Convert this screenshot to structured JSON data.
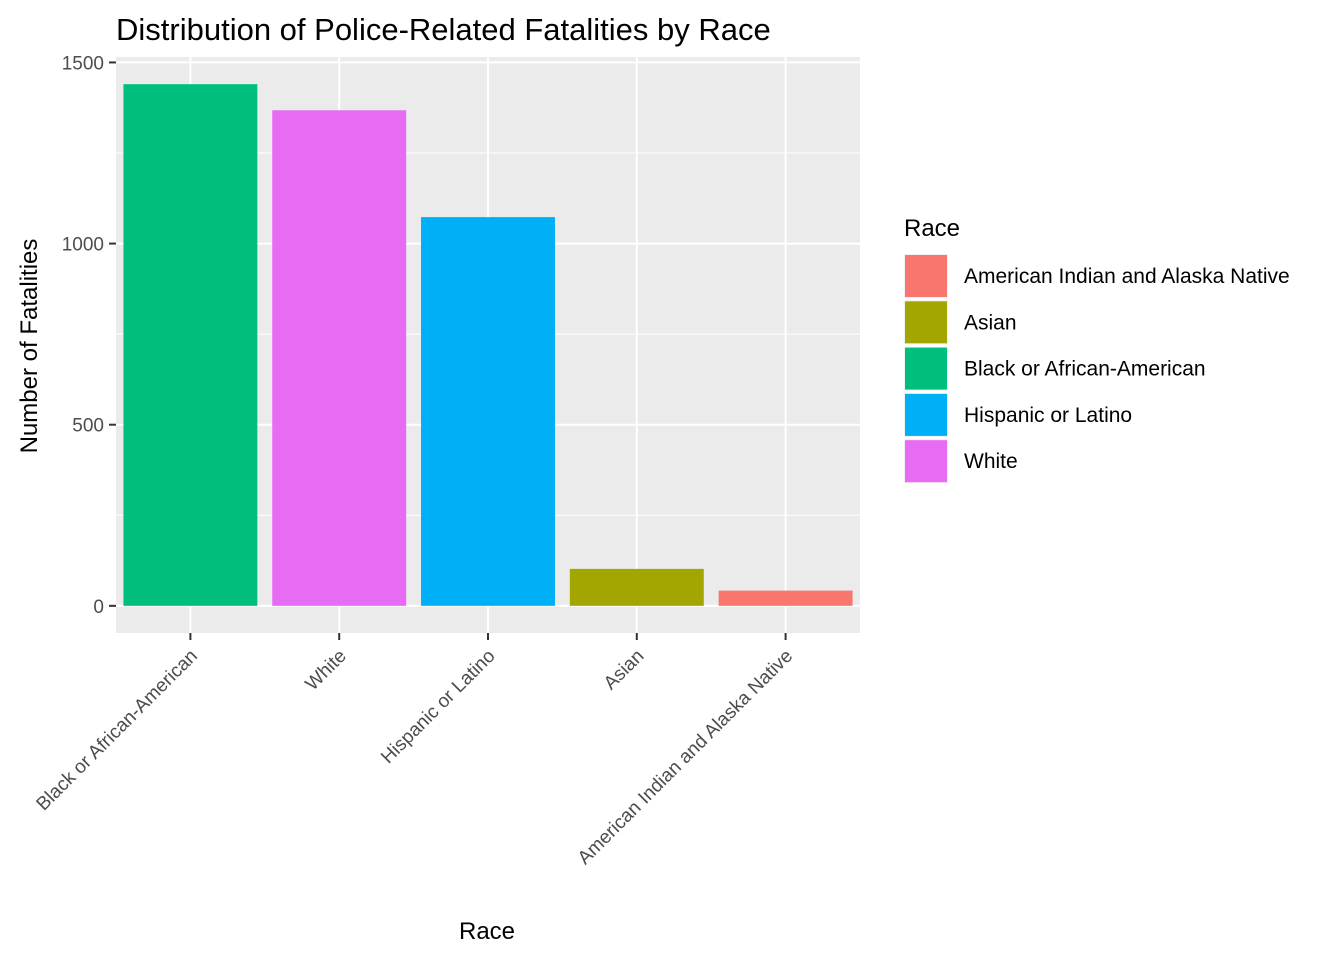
{
  "chart_data": {
    "type": "bar",
    "title": "Distribution of Police-Related Fatalities by Race",
    "xlabel": "Race",
    "ylabel": "Number of Fatalities",
    "categories": [
      "Black or African-American",
      "White",
      "Hispanic or Latino",
      "Asian",
      "American Indian and Alaska Native"
    ],
    "values": [
      1440,
      1368,
      1073,
      102,
      42
    ],
    "bar_colors": [
      "#00BF7D",
      "#E76BF3",
      "#00B0F6",
      "#A3A500",
      "#F8766D"
    ],
    "ylim": [
      -75,
      1515
    ],
    "yticks": [
      0,
      500,
      1000,
      1500
    ],
    "ytick_labels": [
      "0",
      "500",
      "1000",
      "1500"
    ],
    "grid": true,
    "panel_background": "#EBEBEB",
    "legend": {
      "title": "Race",
      "placement": "right",
      "entries": [
        {
          "label": "American Indian and Alaska Native",
          "color": "#F8766D"
        },
        {
          "label": "Asian",
          "color": "#A3A500"
        },
        {
          "label": "Black or African-American",
          "color": "#00BF7D"
        },
        {
          "label": "Hispanic or Latino",
          "color": "#00B0F6"
        },
        {
          "label": "White",
          "color": "#E76BF3"
        }
      ]
    }
  }
}
